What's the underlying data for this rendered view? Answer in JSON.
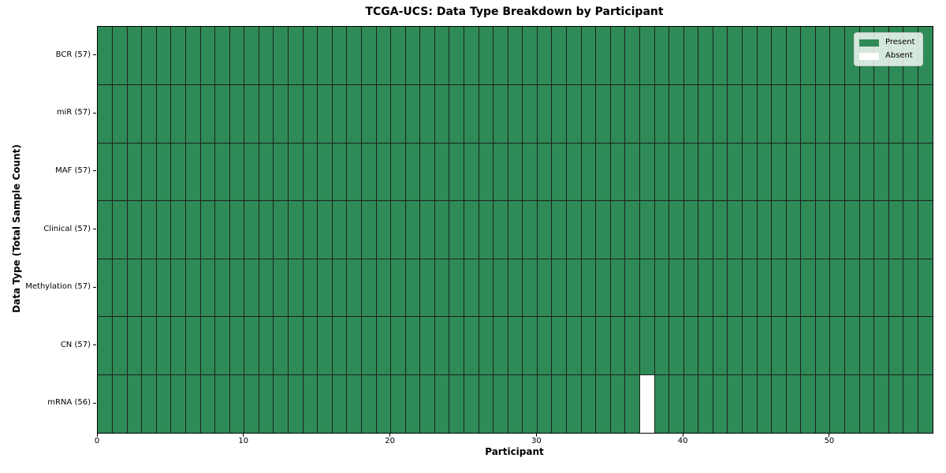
{
  "chart_data": {
    "type": "heatmap",
    "title": "TCGA-UCS: Data Type Breakdown by Participant",
    "xlabel": "Participant",
    "ylabel": "Data Type (Total Sample Count)",
    "x_tick_values": [
      0,
      10,
      20,
      30,
      40,
      50
    ],
    "x_tick_labels": [
      "0",
      "10",
      "20",
      "30",
      "40",
      "50"
    ],
    "n_participants": 57,
    "x_range": [
      0,
      57
    ],
    "grid": true,
    "rows": [
      {
        "name": "BCR",
        "label": "BCR (57)",
        "total": 57,
        "absent_participants": []
      },
      {
        "name": "miR",
        "label": "miR (57)",
        "total": 57,
        "absent_participants": []
      },
      {
        "name": "MAF",
        "label": "MAF (57)",
        "total": 57,
        "absent_participants": []
      },
      {
        "name": "Clinical",
        "label": "Clinical (57)",
        "total": 57,
        "absent_participants": []
      },
      {
        "name": "Methylation",
        "label": "Methylation (57)",
        "total": 57,
        "absent_participants": []
      },
      {
        "name": "CN",
        "label": "CN (57)",
        "total": 57,
        "absent_participants": []
      },
      {
        "name": "mRNA",
        "label": "mRNA (56)",
        "total": 56,
        "absent_participants": [
          37
        ]
      }
    ],
    "legend": {
      "position": "upper-right",
      "entries": [
        {
          "label": "Present",
          "color": "#2e8b57"
        },
        {
          "label": "Absent",
          "color": "#ffffff"
        }
      ]
    },
    "colors": {
      "present": "#2e8b57",
      "absent": "#ffffff",
      "gridline": "#1f1f1f",
      "spine": "#000000",
      "background": "#ffffff"
    }
  }
}
